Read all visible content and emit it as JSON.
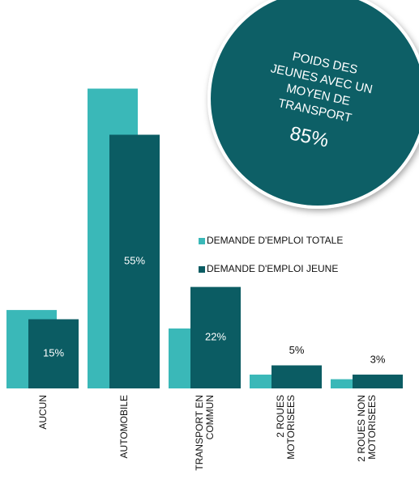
{
  "chart_data": {
    "type": "bar",
    "categories": [
      "AUCUN",
      "AUTOMOBILE",
      "TRANSPORT EN COMMUN",
      "2 ROUES MOTORISEES",
      "2 ROUES NON MOTORISEES"
    ],
    "series": [
      {
        "name": "DEMANDE D'EMPLOI TOTALE",
        "color": "#3ab8b8",
        "values": [
          17,
          65,
          13,
          3,
          2
        ]
      },
      {
        "name": "DEMANDE D'EMPLOI JEUNE",
        "color": "#0b5c63",
        "values": [
          15,
          55,
          22,
          5,
          3
        ],
        "value_labels": [
          "15%",
          "55%",
          "22%",
          "5%",
          "3%"
        ]
      }
    ],
    "annotation": {
      "text": [
        "POIDS DES",
        "JEUNES AVEC UN",
        "MOYEN DE",
        "TRANSPORT"
      ],
      "value_label": "85%"
    }
  }
}
